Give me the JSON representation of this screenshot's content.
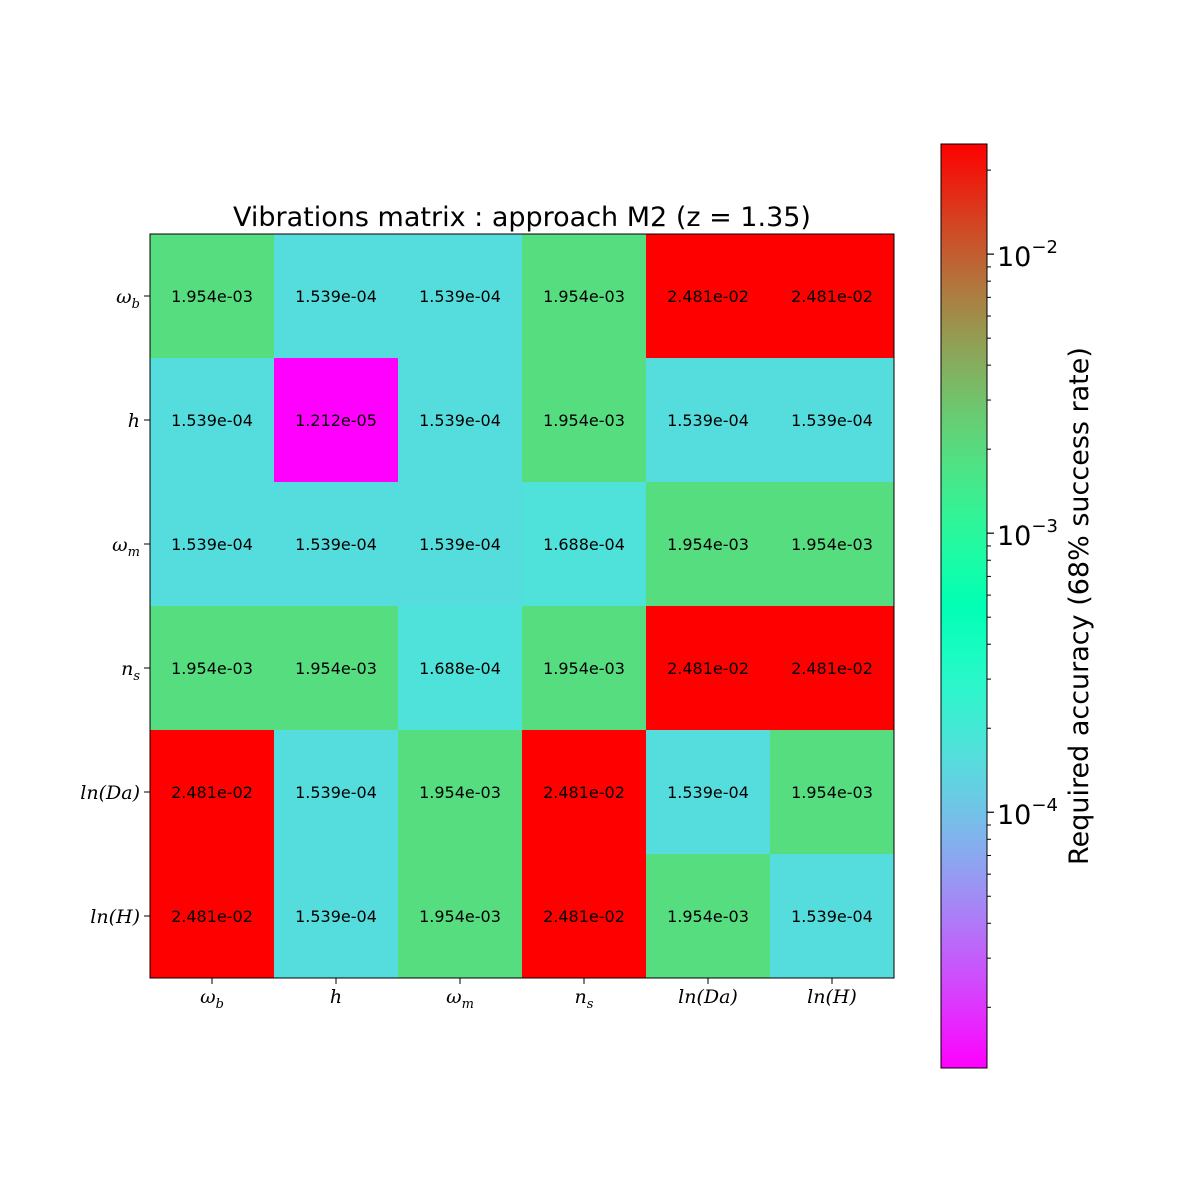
{
  "chart_data": {
    "type": "heatmap",
    "title": "Vibrations matrix : approach M2 (z = 1.35)",
    "x_labels": [
      {
        "base": "ω",
        "sub": "b"
      },
      {
        "base": "h",
        "sub": ""
      },
      {
        "base": "ω",
        "sub": "m"
      },
      {
        "base": "n",
        "sub": "s"
      },
      {
        "base": "ln(Da)",
        "sub": ""
      },
      {
        "base": "ln(H)",
        "sub": ""
      }
    ],
    "y_labels": [
      {
        "base": "ω",
        "sub": "b"
      },
      {
        "base": "h",
        "sub": ""
      },
      {
        "base": "ω",
        "sub": "m"
      },
      {
        "base": "n",
        "sub": "s"
      },
      {
        "base": "ln(Da)",
        "sub": ""
      },
      {
        "base": "ln(H)",
        "sub": ""
      }
    ],
    "values": [
      [
        "1.954e-03",
        "1.539e-04",
        "1.539e-04",
        "1.954e-03",
        "2.481e-02",
        "2.481e-02"
      ],
      [
        "1.539e-04",
        "1.212e-05",
        "1.539e-04",
        "1.954e-03",
        "1.539e-04",
        "1.539e-04"
      ],
      [
        "1.539e-04",
        "1.539e-04",
        "1.539e-04",
        "1.688e-04",
        "1.954e-03",
        "1.954e-03"
      ],
      [
        "1.954e-03",
        "1.954e-03",
        "1.688e-04",
        "1.954e-03",
        "2.481e-02",
        "2.481e-02"
      ],
      [
        "2.481e-02",
        "1.539e-04",
        "1.954e-03",
        "2.481e-02",
        "1.539e-04",
        "1.954e-03"
      ],
      [
        "2.481e-02",
        "1.539e-04",
        "1.954e-03",
        "2.481e-02",
        "1.954e-03",
        "1.539e-04"
      ]
    ],
    "colorbar": {
      "label": "Required accuracy (68% success rate)",
      "scale": "log",
      "range": [
        1.212e-05,
        0.02481
      ],
      "ticks": [
        {
          "value": 0.0001,
          "base": "10",
          "exp": "−4"
        },
        {
          "value": 0.001,
          "base": "10",
          "exp": "−3"
        },
        {
          "value": 0.01,
          "base": "10",
          "exp": "−2"
        }
      ],
      "colormap": "rainbow"
    }
  }
}
